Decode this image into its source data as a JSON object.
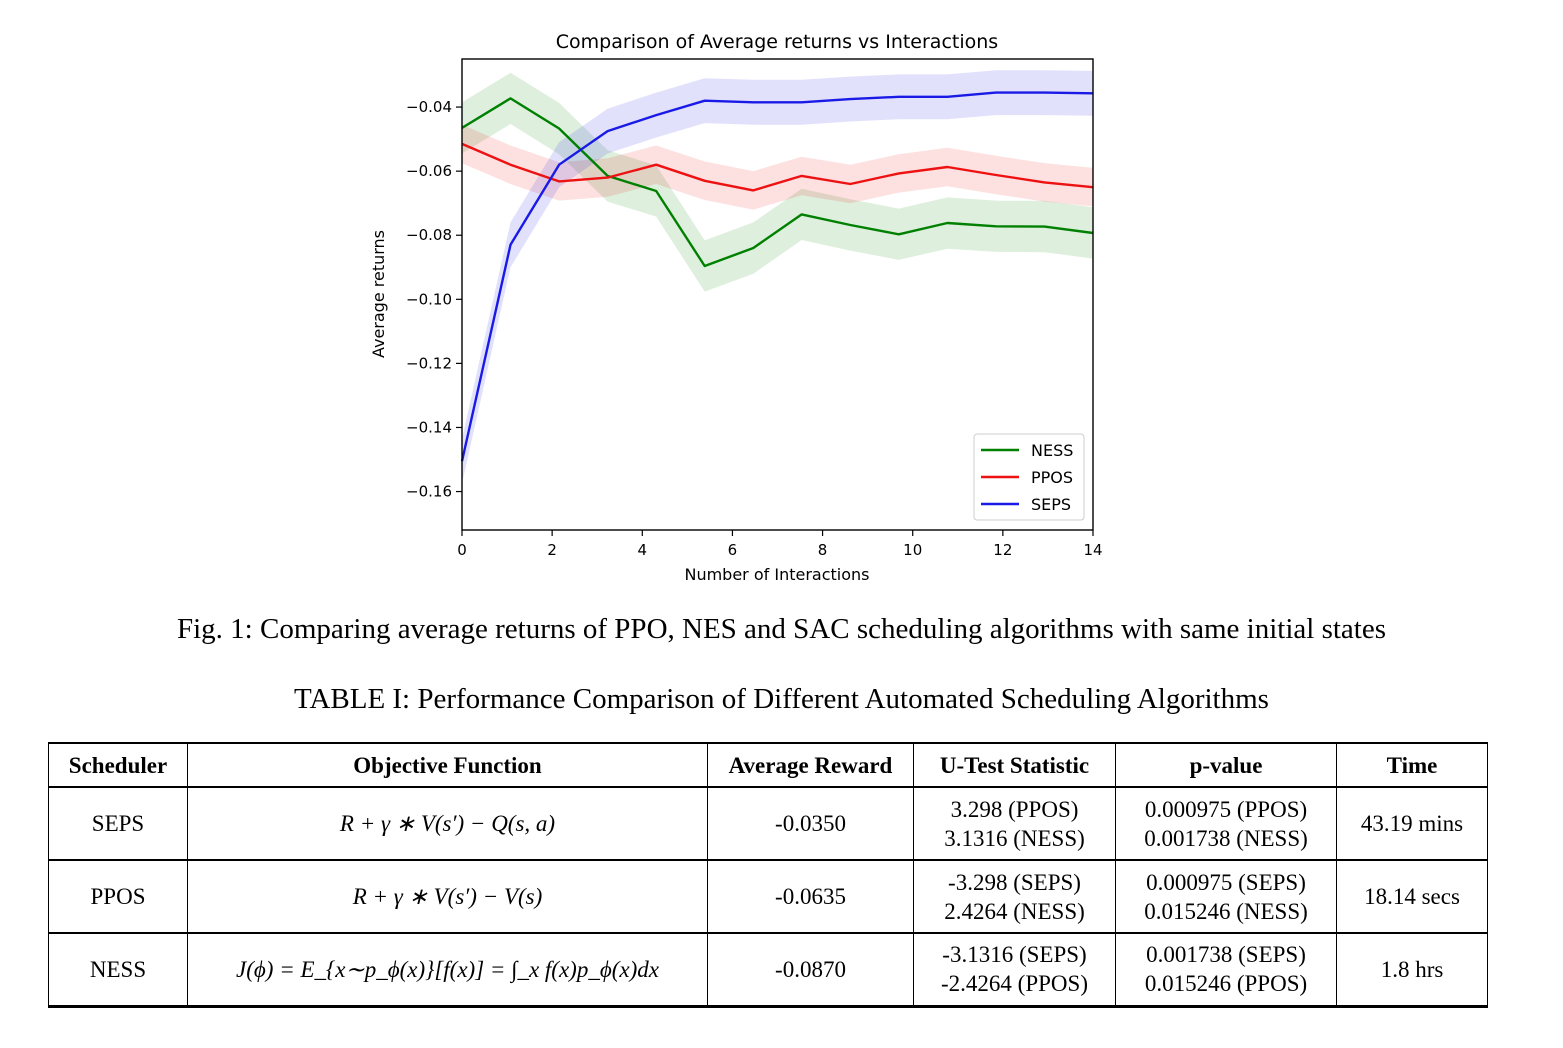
{
  "chart_data": {
    "type": "line",
    "title": "Comparison of Average returns vs Interactions",
    "xlabel": "Number of Interactions",
    "ylabel": "Average returns",
    "xlim": [
      0,
      14
    ],
    "ylim": [
      -0.172,
      -0.025
    ],
    "xticks": [
      0,
      2,
      4,
      6,
      8,
      10,
      12,
      14
    ],
    "xtick_labels": [
      "0",
      "2",
      "4",
      "6",
      "8",
      "10",
      "12",
      "14"
    ],
    "yticks": [
      -0.04,
      -0.06,
      -0.08,
      -0.1,
      -0.12,
      -0.14,
      -0.16
    ],
    "ytick_labels": [
      "−0.04",
      "−0.06",
      "−0.08",
      "−0.10",
      "−0.12",
      "−0.14",
      "−0.16"
    ],
    "grid": false,
    "legend": "lower-right",
    "x": [
      0,
      1.077,
      2.154,
      3.231,
      4.308,
      5.385,
      6.462,
      7.538,
      8.615,
      9.692,
      10.769,
      11.846,
      12.923,
      14
    ],
    "series": [
      {
        "name": "NESS",
        "color": "#008000",
        "band": 0.008,
        "values": [
          -0.0465,
          -0.0373,
          -0.0467,
          -0.0615,
          -0.0662,
          -0.0896,
          -0.084,
          -0.0735,
          -0.0768,
          -0.0797,
          -0.0762,
          -0.0772,
          -0.0773,
          -0.0793
        ]
      },
      {
        "name": "PPOS",
        "color": "#ee1111",
        "band": 0.006,
        "values": [
          -0.0515,
          -0.058,
          -0.0632,
          -0.062,
          -0.058,
          -0.063,
          -0.066,
          -0.0615,
          -0.064,
          -0.0607,
          -0.0587,
          -0.0612,
          -0.0635,
          -0.065
        ]
      },
      {
        "name": "SEPS",
        "color": "#1a1ae6",
        "band": 0.007,
        "values": [
          -0.1505,
          -0.083,
          -0.058,
          -0.0475,
          -0.0425,
          -0.038,
          -0.0385,
          -0.0385,
          -0.0375,
          -0.0368,
          -0.0368,
          -0.0355,
          -0.0355,
          -0.0357
        ]
      }
    ]
  },
  "fig_caption": "Fig. 1: Comparing average returns of PPO, NES and SAC scheduling algorithms with same initial states",
  "table_caption": "TABLE I: Performance Comparison of Different Automated Scheduling Algorithms",
  "table": {
    "headers": [
      "Scheduler",
      "Objective Function",
      "Average Reward",
      "U-Test Statistic",
      "p-value",
      "Time"
    ],
    "rows": [
      {
        "scheduler": "SEPS",
        "objective": "R + γ ∗ V(s′) − Q(s, a)",
        "reward": "-0.0350",
        "utest": [
          "3.298 (PPOS)",
          "3.1316 (NESS)"
        ],
        "pvalue": [
          "0.000975 (PPOS)",
          "0.001738 (NESS)"
        ],
        "time": "43.19 mins"
      },
      {
        "scheduler": "PPOS",
        "objective": "R + γ ∗ V(s′) − V(s)",
        "reward": "-0.0635",
        "utest": [
          "-3.298 (SEPS)",
          "2.4264 (NESS)"
        ],
        "pvalue": [
          "0.000975 (SEPS)",
          "0.015246 (NESS)"
        ],
        "time": "18.14 secs"
      },
      {
        "scheduler": "NESS",
        "objective": "J(ϕ) = E_{x∼p_ϕ(x)}[f(x)] = ∫_x f(x)p_ϕ(x)dx",
        "reward": "-0.0870",
        "utest": [
          "-3.1316 (SEPS)",
          "-2.4264 (PPOS)"
        ],
        "pvalue": [
          "0.001738 (SEPS)",
          "0.015246 (PPOS)"
        ],
        "time": "1.8 hrs"
      }
    ]
  }
}
